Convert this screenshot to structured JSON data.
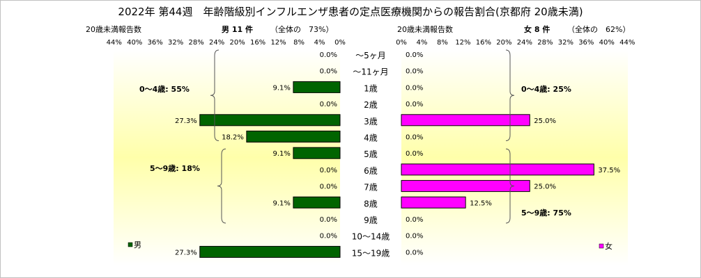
{
  "chart_data": {
    "type": "bar",
    "title": "2022年 第44週　年齢階級別インフルエンザ患者の定点医療機関からの報告割合(京都府 20歳未満)",
    "categories": [
      "～5ヶ月",
      "～11ヶ月",
      "1歳",
      "2歳",
      "3歳",
      "4歳",
      "5歳",
      "6歳",
      "7歳",
      "8歳",
      "9歳",
      "10～14歳",
      "15～19歳"
    ],
    "axis_ticks": [
      "44%",
      "40%",
      "36%",
      "32%",
      "28%",
      "24%",
      "20%",
      "16%",
      "12%",
      "8%",
      "4%",
      "0%"
    ],
    "axis_ticks_right": [
      "0%",
      "4%",
      "8%",
      "12%",
      "16%",
      "20%",
      "24%",
      "28%",
      "32%",
      "36%",
      "40%",
      "44%"
    ],
    "xlim": [
      0,
      44
    ],
    "grid": false,
    "series": [
      {
        "name": "男",
        "header": "男 11 件",
        "header_note": "（全体の　73%）",
        "axis_label": "20歳未満報告数",
        "color": "#006400",
        "values": [
          0.0,
          0.0,
          9.1,
          0.0,
          27.3,
          18.2,
          9.1,
          0.0,
          0.0,
          9.1,
          0.0,
          0.0,
          27.3
        ],
        "labels": [
          "0.0%",
          "0.0%",
          "9.1%",
          "0.0%",
          "27.3%",
          "18.2%",
          "9.1%",
          "0.0%",
          "0.0%",
          "9.1%",
          "0.0%",
          "0.0%",
          "27.3%"
        ],
        "groups": [
          {
            "label": "0～4歳: 55%",
            "from": 0,
            "to": 5
          },
          {
            "label": "5～9歳: 18%",
            "from": 6,
            "to": 10
          }
        ]
      },
      {
        "name": "女",
        "header": "女 8 件",
        "header_note": "（全体の　62%）",
        "axis_label": "20歳未満報告数",
        "color": "#ff00ff",
        "values": [
          0.0,
          0.0,
          0.0,
          0.0,
          25.0,
          0.0,
          0.0,
          37.5,
          25.0,
          12.5,
          0.0,
          0.0,
          0.0
        ],
        "labels": [
          "0.0%",
          "0.0%",
          "0.0%",
          "0.0%",
          "25.0%",
          "0.0%",
          "0.0%",
          "37.5%",
          "25.0%",
          "12.5%",
          "0.0%",
          "0.0%",
          "0.0%"
        ],
        "groups": [
          {
            "label": "0～4歳: 25%",
            "from": 0,
            "to": 5
          },
          {
            "label": "5～9歳: 75%",
            "from": 6,
            "to": 10
          }
        ]
      }
    ]
  }
}
